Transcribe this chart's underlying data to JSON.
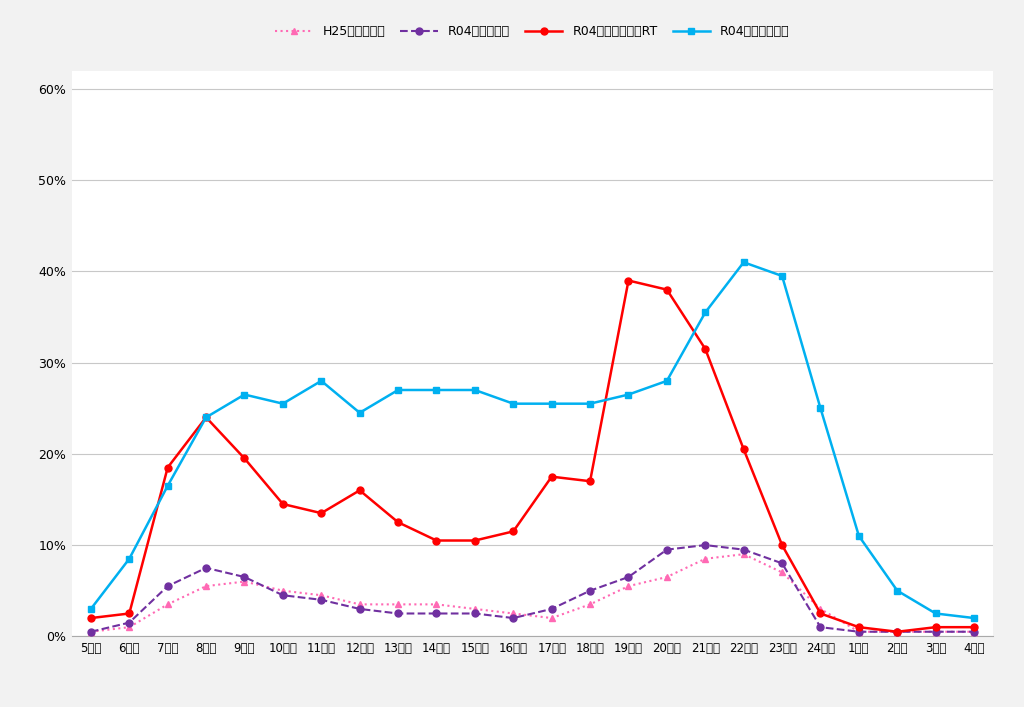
{
  "x_labels": [
    "5時台",
    "6時台",
    "7時台",
    "8時台",
    "9時台",
    "10時台",
    "11時台",
    "12時台",
    "13時台",
    "14時台",
    "15時台",
    "16時台",
    "17時台",
    "18時台",
    "19時台",
    "20時台",
    "21時台",
    "22時台",
    "23時台",
    "24時台",
    "1時台",
    "2時台",
    "3時台",
    "4時台"
  ],
  "series": [
    {
      "label": "H25全年代並行",
      "color": "#ff69b4",
      "linestyle": "dotted",
      "marker": "^",
      "markersize": 5,
      "linewidth": 1.5,
      "values": [
        0.5,
        1.0,
        3.5,
        5.5,
        6.0,
        5.0,
        4.5,
        3.5,
        3.5,
        3.5,
        3.0,
        2.5,
        2.0,
        3.5,
        5.5,
        6.5,
        8.5,
        9.0,
        7.0,
        3.0,
        0.5,
        0.5,
        0.5,
        0.5
      ]
    },
    {
      "label": "R04全年代並行",
      "color": "#7030a0",
      "linestyle": "dashed",
      "marker": "o",
      "markersize": 5,
      "linewidth": 1.5,
      "values": [
        0.5,
        1.5,
        5.5,
        7.5,
        6.5,
        4.5,
        4.0,
        3.0,
        2.5,
        2.5,
        2.5,
        2.0,
        3.0,
        5.0,
        6.5,
        9.5,
        10.0,
        9.5,
        8.0,
        1.0,
        0.5,
        0.5,
        0.5,
        0.5
      ]
    },
    {
      "label": "R04全年代テレビRT",
      "color": "#ff0000",
      "linestyle": "solid",
      "marker": "o",
      "markersize": 5,
      "linewidth": 1.8,
      "values": [
        2.0,
        2.5,
        18.5,
        24.0,
        19.5,
        14.5,
        13.5,
        16.0,
        12.5,
        10.5,
        10.5,
        11.5,
        17.5,
        17.0,
        39.0,
        38.0,
        31.5,
        20.5,
        10.0,
        2.5,
        1.0,
        0.5,
        1.0,
        1.0
      ]
    },
    {
      "label": "R04全年代ネット",
      "color": "#00b0f0",
      "linestyle": "solid",
      "marker": "s",
      "markersize": 5,
      "linewidth": 1.8,
      "values": [
        3.0,
        8.5,
        16.5,
        24.0,
        26.5,
        25.5,
        28.0,
        24.5,
        27.0,
        27.0,
        27.0,
        25.5,
        25.5,
        25.5,
        26.5,
        28.0,
        35.5,
        41.0,
        39.5,
        25.0,
        11.0,
        5.0,
        2.5,
        2.0
      ]
    }
  ],
  "ylim": [
    0,
    62
  ],
  "yticks": [
    0,
    10,
    20,
    30,
    40,
    50,
    60
  ],
  "ytick_labels": [
    "0%",
    "10%",
    "20%",
    "30%",
    "40%",
    "50%",
    "60%"
  ],
  "background_color": "#ffffff",
  "grid_color": "#c8c8c8",
  "plot_area_bg": "#ffffff",
  "outer_bg": "#f2f2f2"
}
